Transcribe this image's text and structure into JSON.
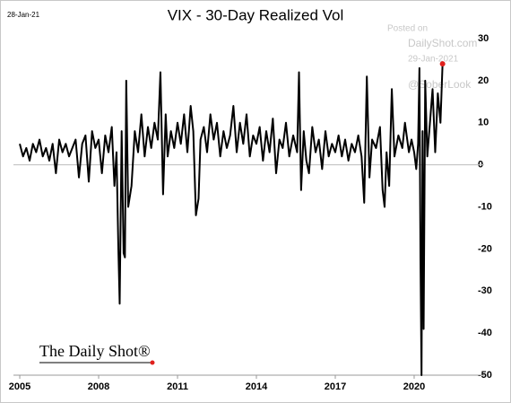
{
  "chart_data": {
    "type": "line",
    "title": "VIX - 30-Day Realized Vol",
    "date_label": "28-Jan-21",
    "watermark": [
      "Posted on",
      "DailyShot.com",
      "29-Jan-2021",
      "@SoberLook"
    ],
    "logo": "The Daily Shot®",
    "xlim": [
      2004.76,
      2022.66
    ],
    "xticks": [
      2005,
      2008,
      2011,
      2014,
      2017,
      2020
    ],
    "ylim": [
      -50,
      33
    ],
    "yticks": [
      -50,
      -40,
      -30,
      -20,
      -10,
      0,
      10,
      20,
      30
    ],
    "grid": false,
    "series": [
      {
        "color": "#000000",
        "end_marker_color": "#e0201c",
        "x": [
          2005,
          2005.125,
          2005.25,
          2005.375,
          2005.5,
          2005.625,
          2005.75,
          2005.875,
          2006,
          2006.125,
          2006.25,
          2006.375,
          2006.5,
          2006.625,
          2006.75,
          2006.875,
          2007,
          2007.125,
          2007.25,
          2007.375,
          2007.5,
          2007.625,
          2007.75,
          2007.875,
          2008,
          2008.125,
          2008.25,
          2008.375,
          2008.5,
          2008.6,
          2008.68,
          2008.75,
          2008.8,
          2008.875,
          2008.95,
          2009,
          2009.05,
          2009.125,
          2009.25,
          2009.375,
          2009.5,
          2009.625,
          2009.75,
          2009.875,
          2010,
          2010.125,
          2010.25,
          2010.35,
          2010.45,
          2010.55,
          2010.625,
          2010.75,
          2010.875,
          2011,
          2011.125,
          2011.25,
          2011.375,
          2011.5,
          2011.6,
          2011.7,
          2011.8,
          2011.875,
          2012,
          2012.125,
          2012.25,
          2012.375,
          2012.5,
          2012.625,
          2012.75,
          2012.875,
          2013,
          2013.125,
          2013.25,
          2013.375,
          2013.5,
          2013.625,
          2013.75,
          2013.875,
          2014,
          2014.125,
          2014.25,
          2014.375,
          2014.5,
          2014.625,
          2014.75,
          2014.875,
          2015,
          2015.125,
          2015.25,
          2015.4,
          2015.55,
          2015.62,
          2015.7,
          2015.8,
          2015.9,
          2016,
          2016.125,
          2016.25,
          2016.375,
          2016.5,
          2016.625,
          2016.75,
          2016.875,
          2017,
          2017.125,
          2017.25,
          2017.375,
          2017.5,
          2017.625,
          2017.75,
          2017.875,
          2018,
          2018.1,
          2018.2,
          2018.3,
          2018.4,
          2018.55,
          2018.7,
          2018.8,
          2018.875,
          2018.95,
          2019.05,
          2019.15,
          2019.25,
          2019.4,
          2019.55,
          2019.65,
          2019.8,
          2019.9,
          2020,
          2020.08,
          2020.15,
          2020.2,
          2020.24,
          2020.28,
          2020.32,
          2020.36,
          2020.42,
          2020.5,
          2020.6,
          2020.7,
          2020.8,
          2020.9,
          2021,
          2021.08
        ],
        "values": [
          5,
          2,
          4,
          1,
          5,
          3,
          6,
          2,
          4,
          1,
          5,
          -2,
          6,
          3,
          5,
          2,
          4,
          6,
          -3,
          5,
          7,
          -4,
          8,
          4,
          6,
          -2,
          7,
          3,
          9,
          -5,
          3,
          -20,
          -33,
          8,
          -21,
          -22,
          20,
          -10,
          -5,
          8,
          3,
          12,
          2,
          9,
          4,
          10,
          6,
          22,
          -7,
          12,
          2,
          8,
          4,
          10,
          5,
          12,
          3,
          14,
          8,
          -12,
          -8,
          6,
          9,
          3,
          12,
          6,
          10,
          2,
          8,
          4,
          7,
          14,
          3,
          10,
          5,
          12,
          2,
          7,
          5,
          9,
          1,
          8,
          3,
          11,
          -2,
          6,
          4,
          10,
          2,
          7,
          3,
          22,
          -6,
          8,
          1,
          -2,
          9,
          3,
          6,
          -1,
          8,
          2,
          5,
          3,
          7,
          2,
          6,
          1,
          5,
          3,
          7,
          2,
          -9,
          21,
          -3,
          6,
          4,
          9,
          -6,
          -10,
          3,
          -5,
          18,
          2,
          7,
          4,
          10,
          3,
          6,
          3,
          -1,
          5,
          23,
          -22,
          -50,
          8,
          -39,
          20,
          2,
          10,
          18,
          3,
          17,
          10,
          24
        ]
      }
    ]
  }
}
